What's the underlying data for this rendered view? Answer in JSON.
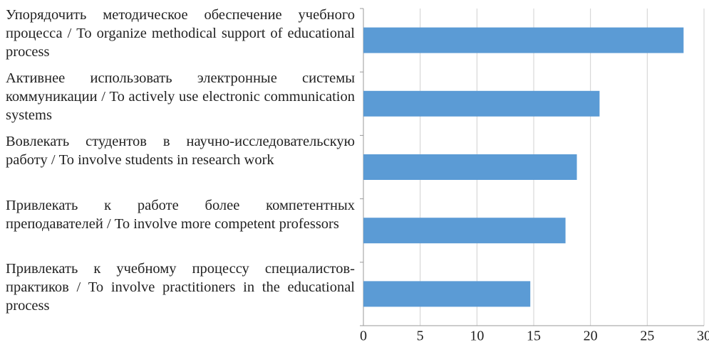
{
  "chart_data": {
    "type": "barh",
    "categories": [
      "Упорядочить методическое обеспечение учебного процесса / To organize methodical support of educational process",
      "Активнее использовать электронные системы коммуникации / To actively use electronic communication systems",
      "Вовлекать студентов в научно-исследовательскую работу / To involve students in research work",
      "Привлекать к работе более компетентных преподавателей / To involve more competent professors",
      "Привлекать к учебному процессу специалистов-практиков / To involve practitioners in the educational process"
    ],
    "values": [
      28.2,
      20.8,
      18.8,
      17.8,
      14.7
    ],
    "color": "#5b9bd5",
    "xlim": [
      0,
      30
    ],
    "xticks": [
      0,
      5,
      10,
      15,
      20,
      25,
      30
    ],
    "grid": true
  }
}
